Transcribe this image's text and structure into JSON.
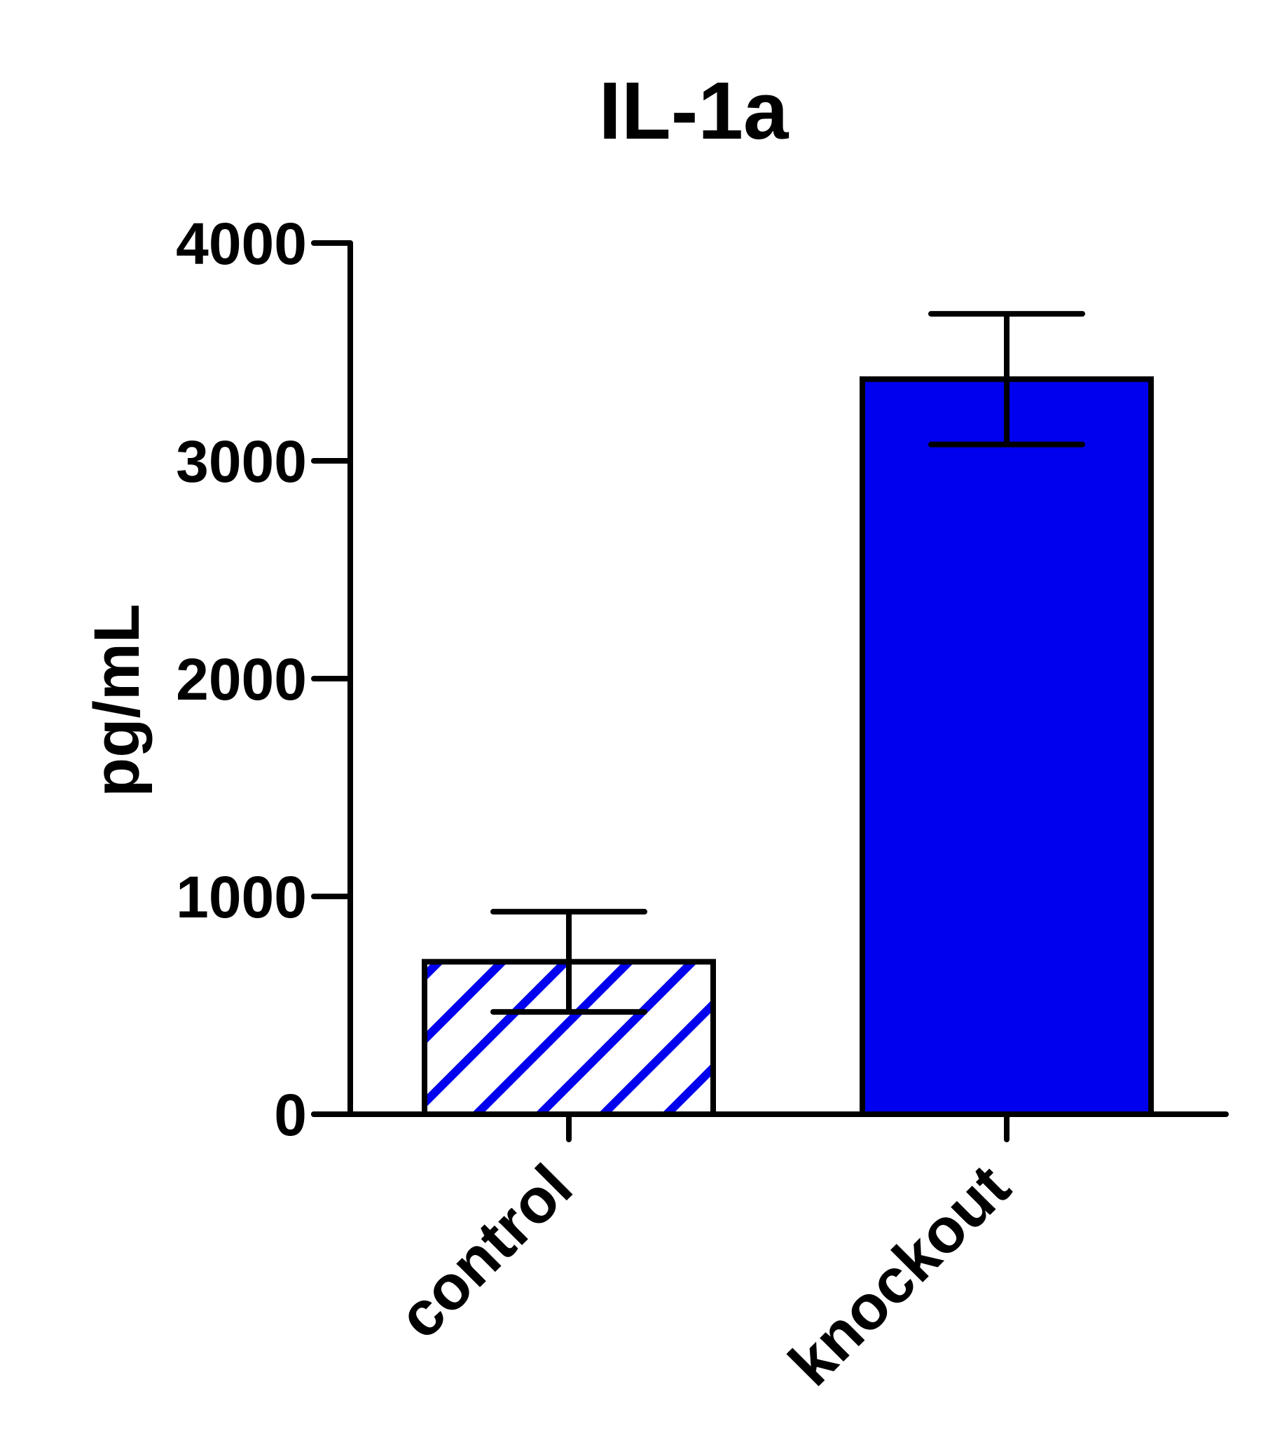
{
  "chart_data": {
    "type": "bar",
    "title": "IL-1a",
    "xlabel": "",
    "ylabel": "pg/mL",
    "ylim": [
      0,
      4000
    ],
    "yticks": [
      0,
      1000,
      2000,
      3000,
      4000
    ],
    "categories": [
      "control",
      "knockout"
    ],
    "values": [
      700,
      3375
    ],
    "error": [
      230,
      300
    ],
    "fills": [
      "hatched",
      "solid"
    ],
    "grid": false,
    "colors": {
      "bar": "#0000ee",
      "axis": "#000000"
    }
  }
}
